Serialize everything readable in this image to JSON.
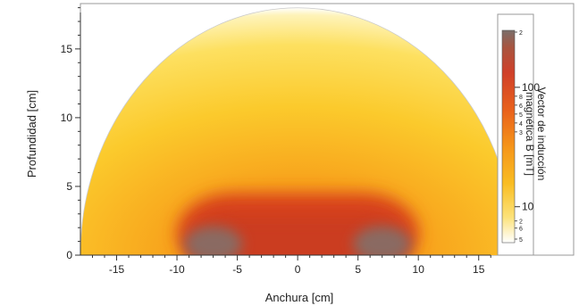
{
  "chart_data": {
    "type": "heatmap",
    "title": "",
    "xlabel": "Anchura [cm]",
    "ylabel": "Profundidad [cm]",
    "xlim": [
      -18,
      16.5
    ],
    "ylim": [
      0,
      18.3
    ],
    "x_ticks": [
      -15,
      -10,
      -5,
      0,
      5,
      10,
      15
    ],
    "x_tick_labels": [
      "-15",
      "-10",
      "-5",
      "0",
      "5",
      "10",
      "15"
    ],
    "y_ticks": [
      0,
      5,
      10,
      15
    ],
    "y_tick_labels": [
      "0",
      "5",
      "10",
      "15"
    ],
    "field_region": {
      "shape": "semicircle",
      "center_x": 0,
      "center_y": 0,
      "radius": 18
    },
    "high_field_region": {
      "shape": "stadium",
      "x_range": [
        -10,
        10
      ],
      "height": 4.5
    },
    "hotspots": [
      {
        "x": -7,
        "y": 0.8
      },
      {
        "x": 7,
        "y": 0.8
      }
    ],
    "colorbar": {
      "label": "Vector de inducción magnética B [mT]",
      "label_lines": [
        "Vector de inducción",
        "magnética B [mT]"
      ],
      "scale": "log",
      "major_ticks": [
        {
          "label": "100",
          "value": 100
        },
        {
          "label": "10",
          "value": 10
        }
      ],
      "minor_tick_labels": [
        "2",
        "8",
        "6",
        "5",
        "4",
        "3",
        "2",
        "6",
        "5"
      ],
      "colors": [
        "#7a6e6a",
        "#c8452b",
        "#e85a1f",
        "#f58a18",
        "#f9b21e",
        "#fbd83a",
        "#fdf3b0",
        "#ffffff"
      ]
    }
  }
}
